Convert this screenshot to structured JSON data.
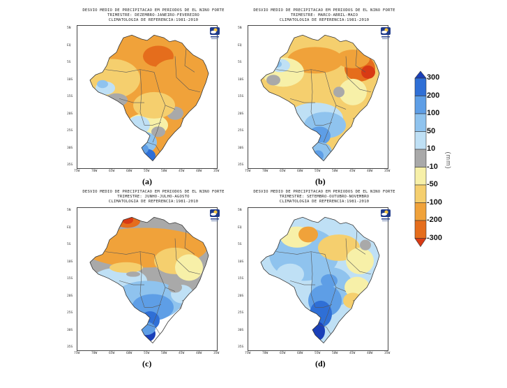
{
  "panels": [
    {
      "title_lines": [
        "DESVIO MEDIO DE PRECIPITACAO EM PERIODOS DE EL NINO FORTE",
        "TRIMESTRE: DEZEMBRO-JANEIRO-FEVEREIRO",
        "CLIMATOLOGIA DE REFERENCIA:1981-2010"
      ],
      "caption": "(a)"
    },
    {
      "title_lines": [
        "DESVIO MEDIO DE PRECIPITACAO EM PERIODOS DE EL NINO FORTE",
        "TRIMESTRE: MARCO-ABRIL-MAIO",
        "CLIMATOLOGIA DE REFERENCIA:1981-2010"
      ],
      "caption": "(b)"
    },
    {
      "title_lines": [
        "DESVIO MEDIO DE PRECIPITACAO EM PERIODOS DE EL NINO FORTE",
        "TRIMESTRE: JUNHO-JULHO-AGOSTO",
        "CLIMATOLOGIA DE REFERENCIA:1981-2010"
      ],
      "caption": "(c)"
    },
    {
      "title_lines": [
        "DESVIO MEDIO DE PRECIPITACAO EM PERIODOS DE EL NINO FORTE",
        "TRIMESTRE: SETEMBRO-OUTUBRO-NOVEMBRO",
        "CLIMATOLOGIA DE REFERENCIA:1981-2010"
      ],
      "caption": "(d)"
    }
  ],
  "lat_ticks": [
    "5N",
    "EQ",
    "5S",
    "10S",
    "15S",
    "20S",
    "25S",
    "30S",
    "35S"
  ],
  "lon_ticks": [
    "75W",
    "70W",
    "65W",
    "60W",
    "55W",
    "50W",
    "45W",
    "40W",
    "35W"
  ],
  "colorbar": {
    "unit": "(mm)",
    "labels": [
      "300",
      "200",
      "100",
      "50",
      "10",
      "-10",
      "-50",
      "-100",
      "-200",
      "-300"
    ],
    "colors": [
      "#1a3fb8",
      "#2f6fd6",
      "#5e9ee6",
      "#8fc3ee",
      "#bfe0f5",
      "#a9a9a9",
      "#f7f0a8",
      "#f5cf6e",
      "#f0a23a",
      "#e56d1c",
      "#d83a14"
    ]
  },
  "logo_text": "CPTEC INPE"
}
